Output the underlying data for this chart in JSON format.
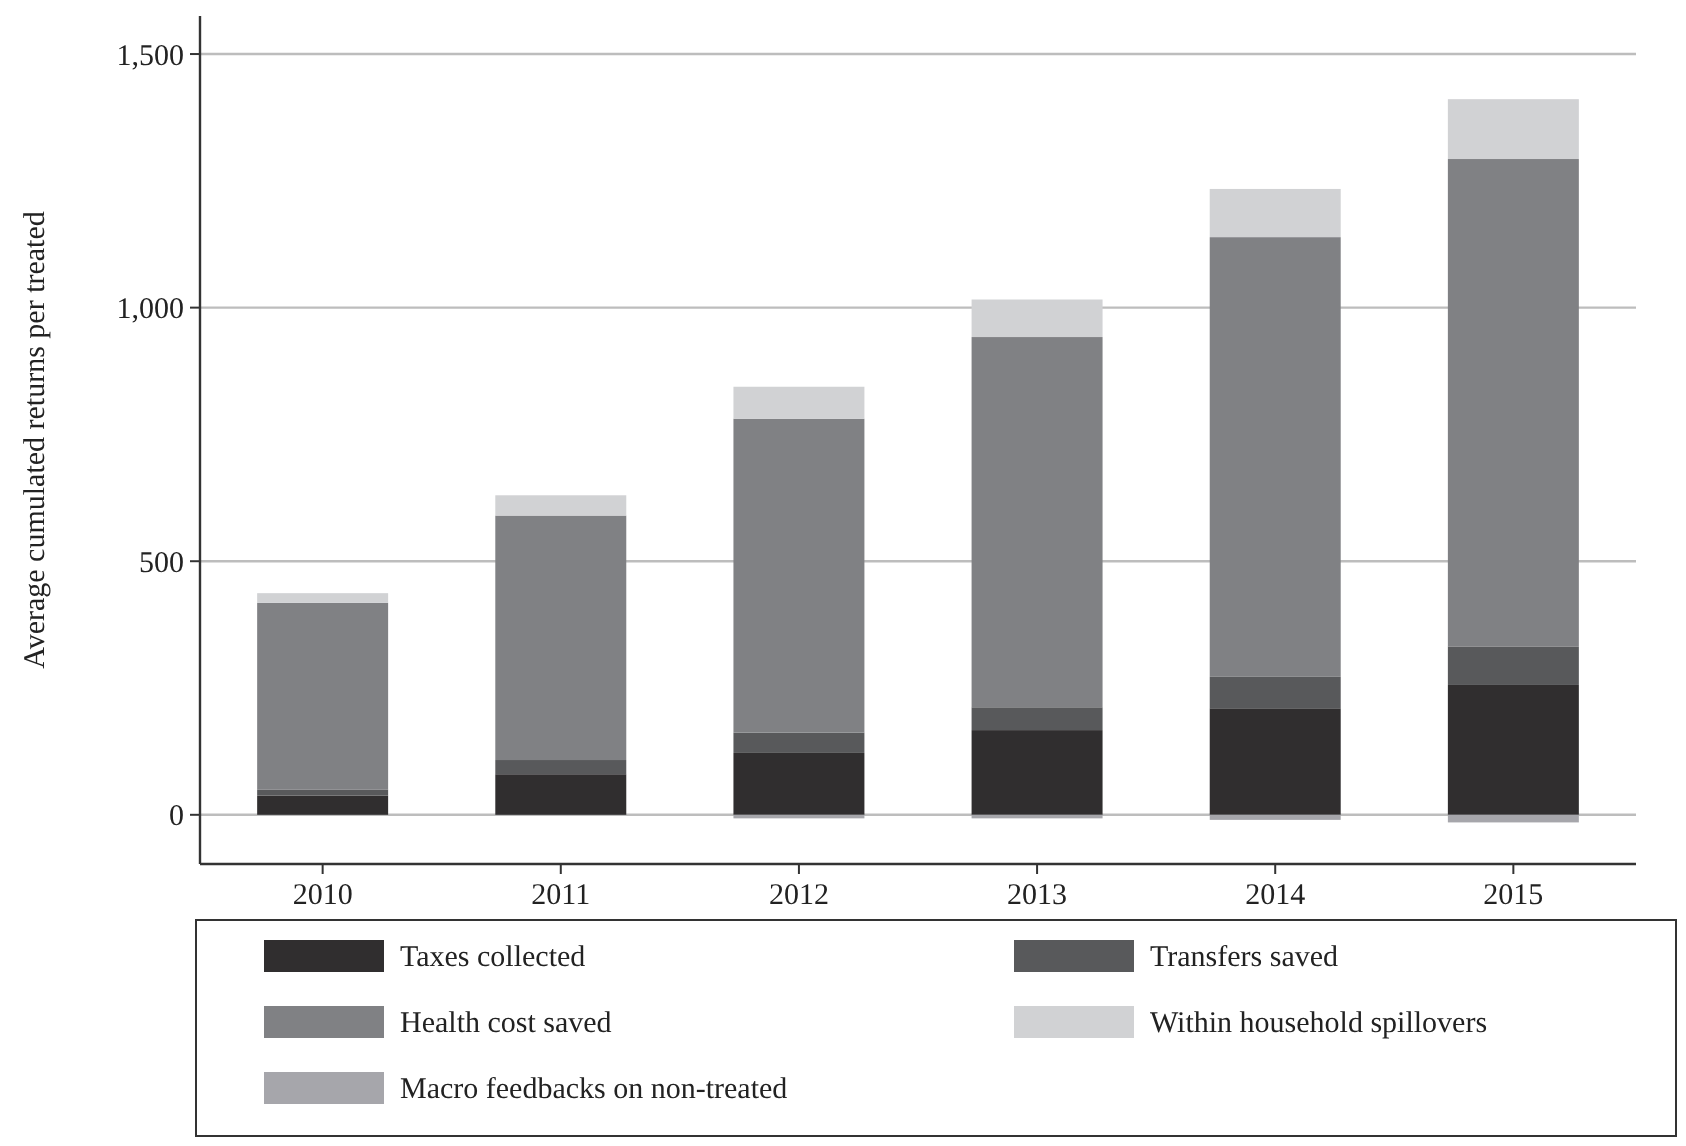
{
  "chart_data": {
    "type": "bar",
    "ylabel": "Average cumulated returns per treated",
    "categories": [
      "2010",
      "2011",
      "2012",
      "2013",
      "2014",
      "2015"
    ],
    "stacked": true,
    "series": [
      {
        "name": "Taxes collected",
        "color": "#302e2f",
        "values": [
          38,
          80,
          122,
          167,
          210,
          256
        ]
      },
      {
        "name": "Transfers saved",
        "color": "#58595b",
        "values": [
          12,
          28,
          40,
          45,
          62,
          76
        ]
      },
      {
        "name": "Health cost saved",
        "color": "#808184",
        "values": [
          368,
          482,
          619,
          730,
          867,
          961
        ]
      },
      {
        "name": "Within household spillovers",
        "color": "#d1d2d4",
        "values": [
          19,
          40,
          63,
          74,
          95,
          118
        ]
      },
      {
        "name": "Macro feedbacks on non-treated",
        "color": "#a6a6ab",
        "values": [
          0,
          0,
          -7,
          -7,
          -10,
          -15
        ]
      }
    ],
    "ylim": [
      -97,
      1575
    ],
    "yticks": [
      0,
      500,
      {
        "value": 1000,
        "label": "1,000"
      },
      {
        "value": 1500,
        "label": "1,500"
      }
    ],
    "grid": "y",
    "legend": "bottom"
  }
}
